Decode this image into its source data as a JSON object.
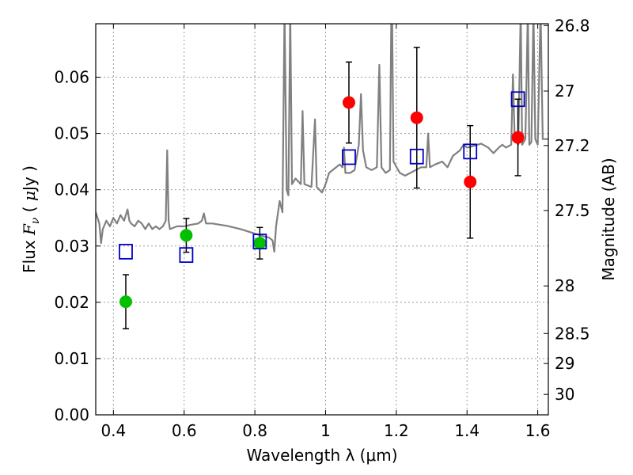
{
  "chart_data": {
    "type": "scatter",
    "xlabel": "Wavelength  λ (μm)",
    "ylabel_parts": [
      "Flux  ",
      "F",
      "ν",
      "  ( ",
      "μ",
      "Jy )"
    ],
    "ylabel2": "Magnitude (AB)",
    "xlim": [
      0.35,
      1.63
    ],
    "ylim": [
      0.0,
      0.0695
    ],
    "grid": true,
    "x_ticks": [
      {
        "value": 0.4,
        "label": "0.4"
      },
      {
        "value": 0.6,
        "label": "0.6"
      },
      {
        "value": 0.8,
        "label": "0.8"
      },
      {
        "value": 1.0,
        "label": "1"
      },
      {
        "value": 1.2,
        "label": "1.2"
      },
      {
        "value": 1.4,
        "label": "1.4"
      },
      {
        "value": 1.6,
        "label": "1.6"
      }
    ],
    "y_ticks": [
      {
        "value": 0.0,
        "label": "0.00"
      },
      {
        "value": 0.01,
        "label": "0.01"
      },
      {
        "value": 0.02,
        "label": "0.02"
      },
      {
        "value": 0.03,
        "label": "0.03"
      },
      {
        "value": 0.04,
        "label": "0.04"
      },
      {
        "value": 0.05,
        "label": "0.05"
      },
      {
        "value": 0.06,
        "label": "0.06"
      }
    ],
    "y2_ticks": [
      {
        "flux": 0.06918,
        "label": "26.8"
      },
      {
        "flux": 0.05754,
        "label": "27"
      },
      {
        "flux": 0.04786,
        "label": "27.2"
      },
      {
        "flux": 0.03631,
        "label": "27.5"
      },
      {
        "flux": 0.02291,
        "label": "28"
      },
      {
        "flux": 0.01445,
        "label": "28.5"
      },
      {
        "flux": 0.00912,
        "label": "29"
      },
      {
        "flux": 0.00363,
        "label": "30"
      }
    ],
    "series": [
      {
        "marker": "circle",
        "color": "#00c000",
        "points": [
          {
            "x": 0.435,
            "y": 0.0201,
            "err": 0.0048
          },
          {
            "x": 0.606,
            "y": 0.0319,
            "err": 0.003
          },
          {
            "x": 0.814,
            "y": 0.0305,
            "err": 0.0028
          }
        ]
      },
      {
        "marker": "circle",
        "color": "#ff0000",
        "points": [
          {
            "x": 1.066,
            "y": 0.0555,
            "err": 0.0072
          },
          {
            "x": 1.258,
            "y": 0.0528,
            "err": 0.0125
          },
          {
            "x": 1.409,
            "y": 0.0414,
            "err": 0.01
          },
          {
            "x": 1.544,
            "y": 0.0493,
            "err": 0.0068
          }
        ]
      },
      {
        "marker": "square",
        "color": "#0000c8",
        "points": [
          {
            "x": 0.435,
            "y": 0.029
          },
          {
            "x": 0.606,
            "y": 0.0284
          },
          {
            "x": 0.814,
            "y": 0.0308
          },
          {
            "x": 1.066,
            "y": 0.0458
          },
          {
            "x": 1.258,
            "y": 0.0459
          },
          {
            "x": 1.409,
            "y": 0.0468
          },
          {
            "x": 1.544,
            "y": 0.0561
          }
        ]
      }
    ],
    "spectrum": {
      "color": "#808080",
      "points": [
        [
          0.35,
          0.036
        ],
        [
          0.36,
          0.034
        ],
        [
          0.365,
          0.0305
        ],
        [
          0.37,
          0.033
        ],
        [
          0.38,
          0.0345
        ],
        [
          0.39,
          0.0335
        ],
        [
          0.4,
          0.035
        ],
        [
          0.41,
          0.034
        ],
        [
          0.42,
          0.0355
        ],
        [
          0.43,
          0.0345
        ],
        [
          0.44,
          0.0365
        ],
        [
          0.445,
          0.0345
        ],
        [
          0.45,
          0.034
        ],
        [
          0.46,
          0.0335
        ],
        [
          0.47,
          0.0345
        ],
        [
          0.48,
          0.034
        ],
        [
          0.49,
          0.033
        ],
        [
          0.5,
          0.034
        ],
        [
          0.51,
          0.033
        ],
        [
          0.52,
          0.0335
        ],
        [
          0.53,
          0.033
        ],
        [
          0.54,
          0.0335
        ],
        [
          0.548,
          0.0345
        ],
        [
          0.552,
          0.047
        ],
        [
          0.556,
          0.0345
        ],
        [
          0.56,
          0.033
        ],
        [
          0.58,
          0.0335
        ],
        [
          0.6,
          0.0335
        ],
        [
          0.62,
          0.0338
        ],
        [
          0.64,
          0.034
        ],
        [
          0.65,
          0.0345
        ],
        [
          0.656,
          0.0358
        ],
        [
          0.662,
          0.034
        ],
        [
          0.68,
          0.034
        ],
        [
          0.7,
          0.0338
        ],
        [
          0.72,
          0.0336
        ],
        [
          0.74,
          0.0333
        ],
        [
          0.76,
          0.033
        ],
        [
          0.78,
          0.0326
        ],
        [
          0.8,
          0.0322
        ],
        [
          0.82,
          0.0318
        ],
        [
          0.84,
          0.0315
        ],
        [
          0.85,
          0.031
        ],
        [
          0.855,
          0.029
        ],
        [
          0.86,
          0.0335
        ],
        [
          0.87,
          0.038
        ],
        [
          0.878,
          0.036
        ],
        [
          0.884,
          0.072
        ],
        [
          0.89,
          0.04
        ],
        [
          0.895,
          0.039
        ],
        [
          0.9,
          0.072
        ],
        [
          0.905,
          0.041
        ],
        [
          0.915,
          0.042
        ],
        [
          0.93,
          0.041
        ],
        [
          0.935,
          0.054
        ],
        [
          0.94,
          0.041
        ],
        [
          0.96,
          0.0405
        ],
        [
          0.97,
          0.0525
        ],
        [
          0.975,
          0.0405
        ],
        [
          0.99,
          0.0395
        ],
        [
          1.0,
          0.041
        ],
        [
          1.01,
          0.043
        ],
        [
          1.03,
          0.044
        ],
        [
          1.04,
          0.0445
        ],
        [
          1.048,
          0.044
        ],
        [
          1.052,
          0.0475
        ],
        [
          1.056,
          0.043
        ],
        [
          1.07,
          0.043
        ],
        [
          1.082,
          0.0435
        ],
        [
          1.094,
          0.048
        ],
        [
          1.1,
          0.057
        ],
        [
          1.106,
          0.047
        ],
        [
          1.115,
          0.044
        ],
        [
          1.13,
          0.0435
        ],
        [
          1.145,
          0.044
        ],
        [
          1.152,
          0.0622
        ],
        [
          1.158,
          0.044
        ],
        [
          1.17,
          0.043
        ],
        [
          1.182,
          0.0435
        ],
        [
          1.186,
          0.072
        ],
        [
          1.188,
          0.072
        ],
        [
          1.192,
          0.045
        ],
        [
          1.21,
          0.043
        ],
        [
          1.225,
          0.0425
        ],
        [
          1.24,
          0.043
        ],
        [
          1.255,
          0.0435
        ],
        [
          1.27,
          0.044
        ],
        [
          1.285,
          0.044
        ],
        [
          1.29,
          0.05
        ],
        [
          1.295,
          0.044
        ],
        [
          1.31,
          0.0445
        ],
        [
          1.33,
          0.045
        ],
        [
          1.345,
          0.044
        ],
        [
          1.36,
          0.046
        ],
        [
          1.38,
          0.047
        ],
        [
          1.39,
          0.048
        ],
        [
          1.4,
          0.0475
        ],
        [
          1.42,
          0.0478
        ],
        [
          1.44,
          0.0482
        ],
        [
          1.46,
          0.0475
        ],
        [
          1.475,
          0.0465
        ],
        [
          1.49,
          0.0475
        ],
        [
          1.5,
          0.048
        ],
        [
          1.51,
          0.0475
        ],
        [
          1.525,
          0.048
        ],
        [
          1.53,
          0.0605
        ],
        [
          1.535,
          0.049
        ],
        [
          1.545,
          0.048
        ],
        [
          1.552,
          0.072
        ],
        [
          1.556,
          0.048
        ],
        [
          1.565,
          0.049
        ],
        [
          1.572,
          0.072
        ],
        [
          1.576,
          0.048
        ],
        [
          1.582,
          0.0485
        ],
        [
          1.588,
          0.072
        ],
        [
          1.593,
          0.049
        ],
        [
          1.6,
          0.048
        ],
        [
          1.608,
          0.072
        ],
        [
          1.614,
          0.049
        ],
        [
          1.63,
          0.049
        ]
      ]
    }
  }
}
